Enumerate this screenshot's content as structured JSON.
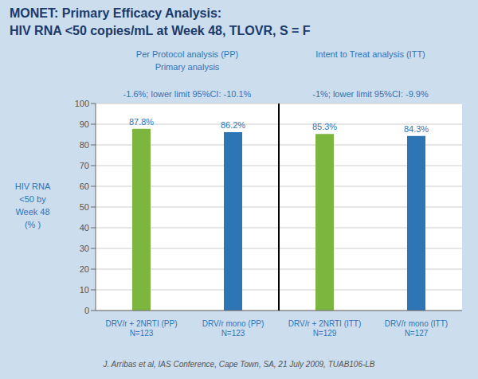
{
  "chart_data": {
    "type": "bar",
    "title": "MONET: Primary Efficacy Analysis:",
    "subtitle": "HIV RNA <50 copies/mL at Week 48, TLOVR, S = F",
    "y_label": "HIV RNA\n<50 by\nWeek 48\n(% )",
    "categories": [
      "DRV/r + 2NRTI (PP)\nN=123",
      "DRV/r mono (PP)\nN=123",
      "DRV/r + 2NRTI (ITT)\nN=129",
      "DRV/r mono (ITT)\nN=127"
    ],
    "values": [
      87.8,
      86.2,
      85.3,
      84.3
    ],
    "value_labels": [
      "87.8%",
      "86.2%",
      "85.3%",
      "84.3%"
    ],
    "data_labels": true,
    "colors": [
      "#7db63e",
      "#2e75b6",
      "#7db63e",
      "#2e75b6"
    ],
    "ylim": [
      0,
      100
    ],
    "yticks": [
      0,
      10,
      20,
      30,
      40,
      50,
      60,
      70,
      80,
      90,
      100
    ],
    "grid": true,
    "annotations": [
      "Per Protocol analysis (PP)",
      "Primary analysis",
      "-1.6%; lower limit 95%CI: -10.1%",
      "Intent to Treat analysis (ITT)",
      "-1%; lower limit 95%CI: -9.9%",
      "J. Arribas et al, IAS Conference, Cape Town, SA, 21 July 2009, TUAB106-LB"
    ]
  }
}
